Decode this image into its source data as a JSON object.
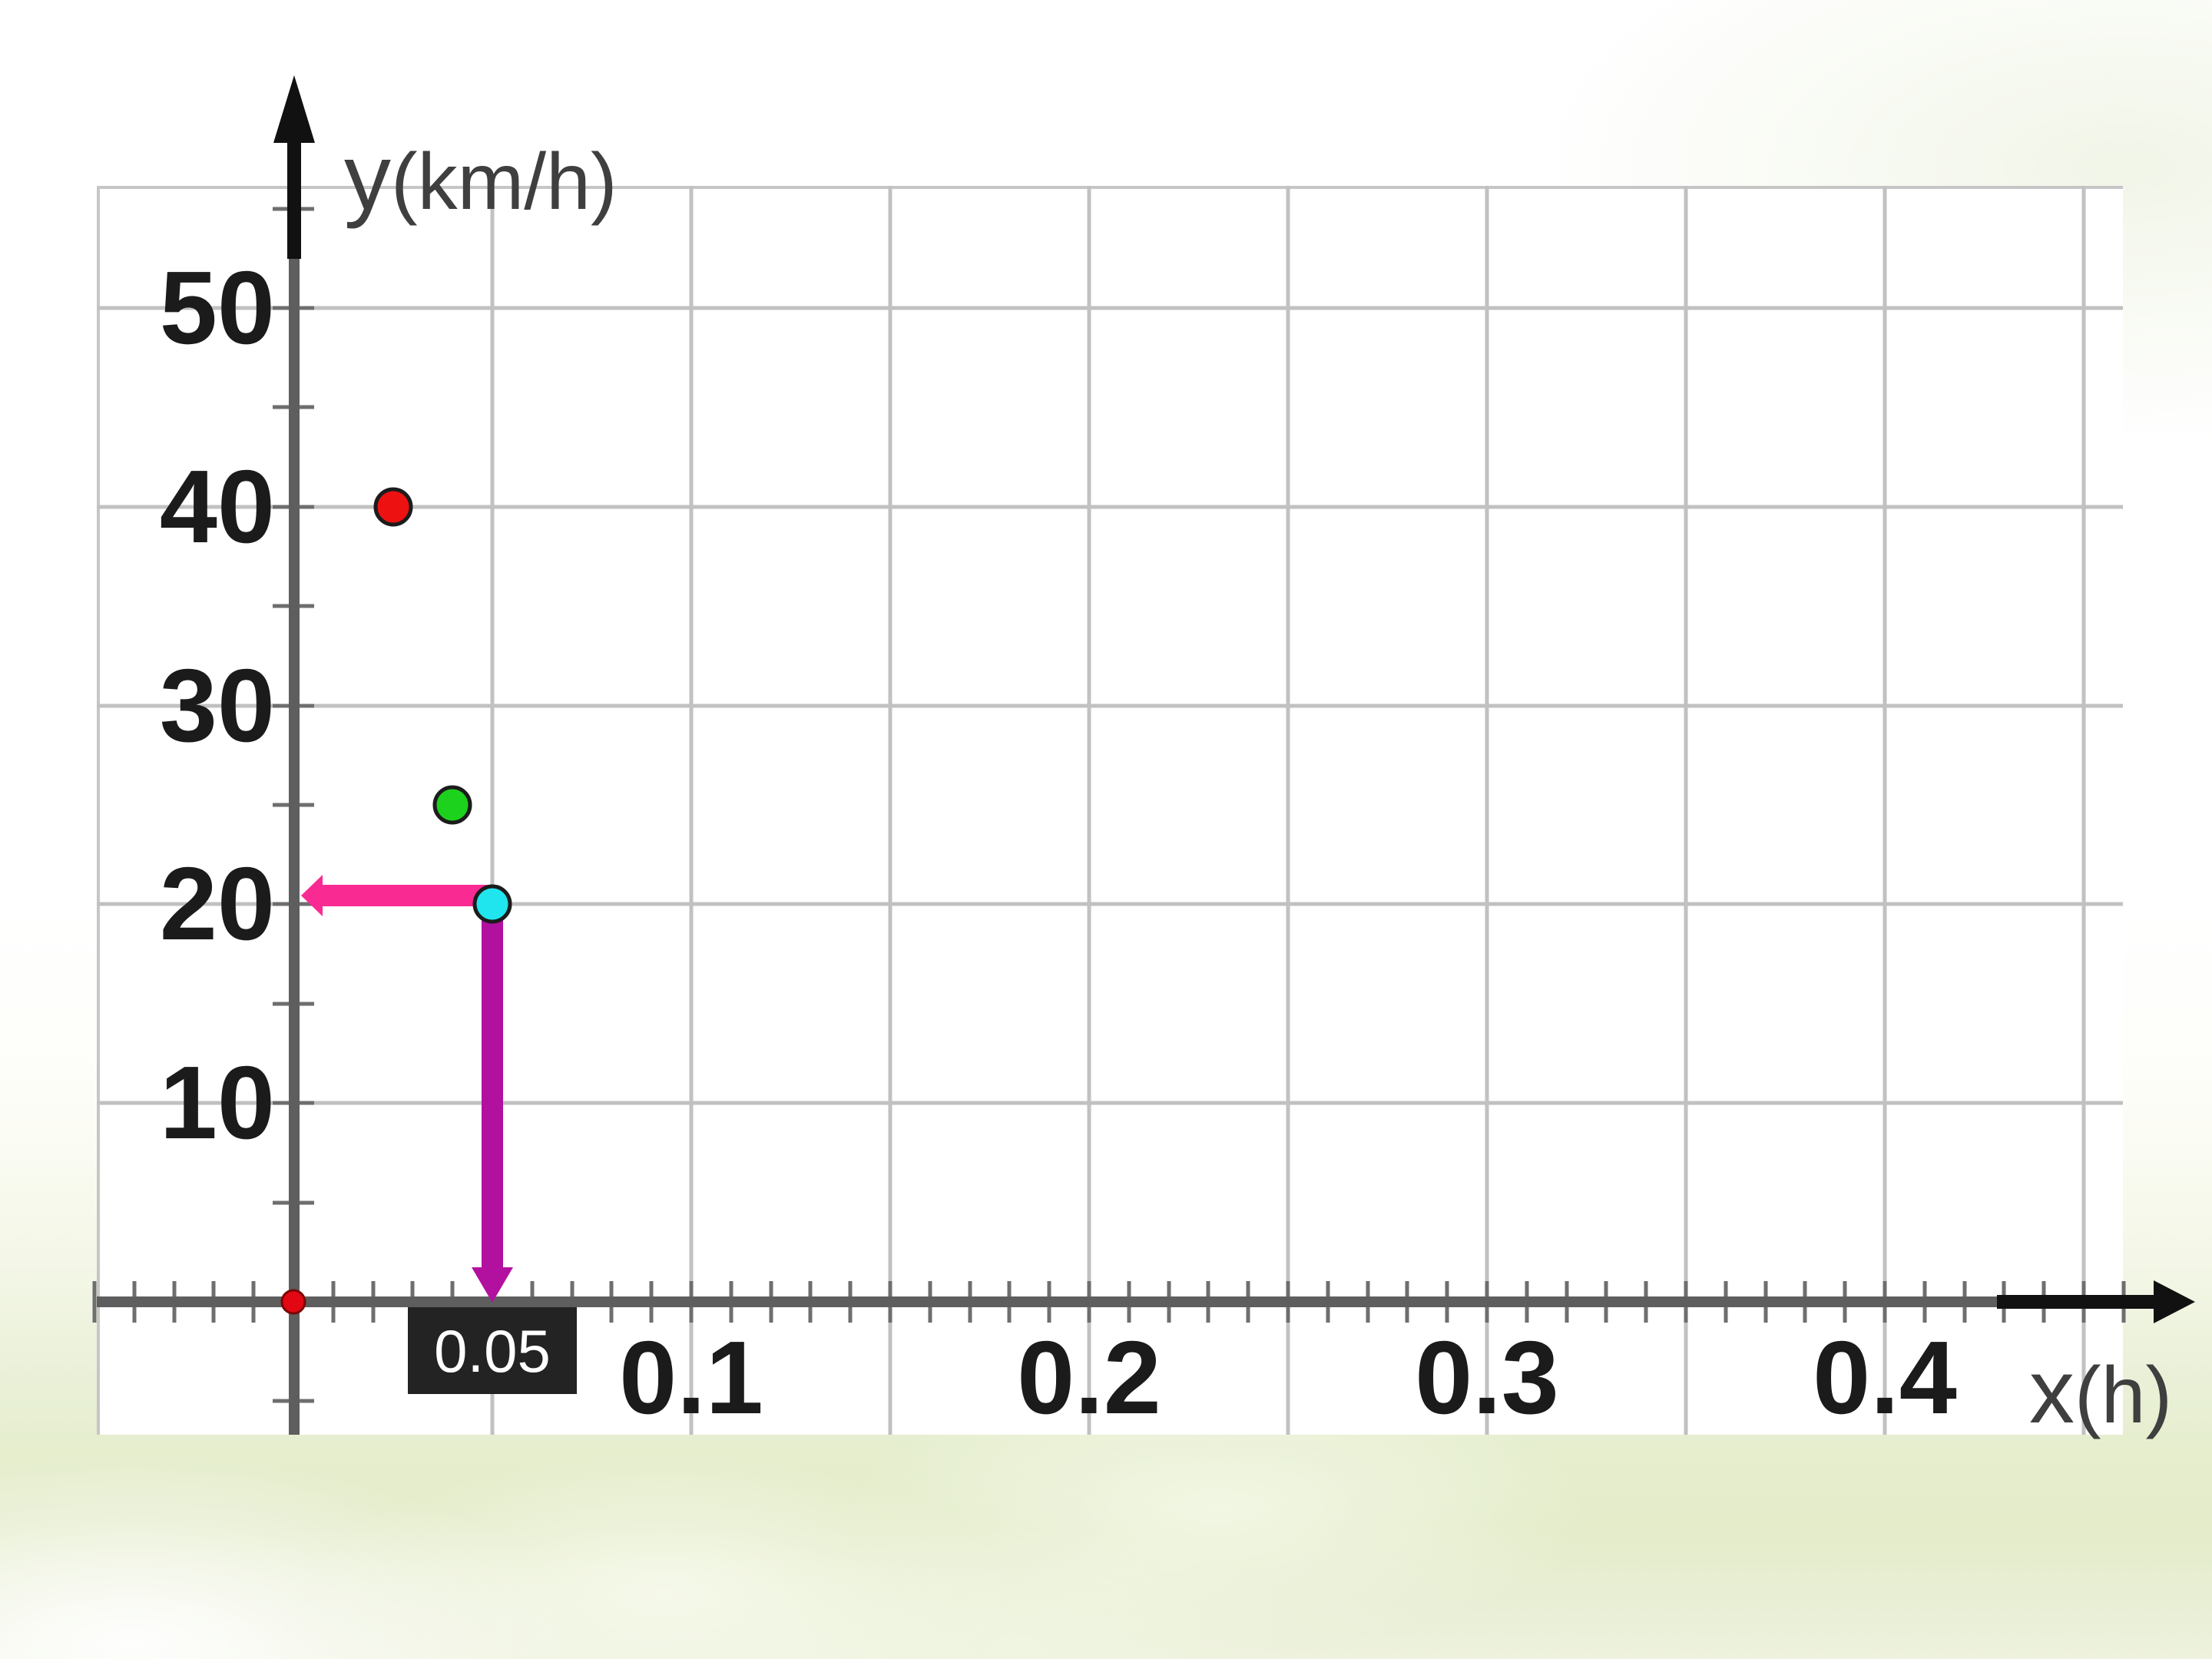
{
  "slide": {
    "background_top_color": "#ffffff",
    "background_bottom_color": "#e6eecf"
  },
  "chart_data": {
    "type": "scatter",
    "title": "",
    "xlabel": "x(h)",
    "xlabel_parts": {
      "symbol": "x",
      "unit": "(h)"
    },
    "ylabel": "y(km/h)",
    "ylabel_parts": {
      "symbol": "y",
      "unit": "(km/h)"
    },
    "xlim": [
      -0.05,
      0.46
    ],
    "ylim": [
      -5,
      56
    ],
    "grid": true,
    "x_gridline_step": 0.05,
    "y_gridline_step": 10,
    "x_minor_tick_step": 0.01,
    "y_minor_tick_step": 5,
    "x_tick_labels": [
      {
        "value": 0.1,
        "label": "0.1"
      },
      {
        "value": 0.2,
        "label": "0.2"
      },
      {
        "value": 0.3,
        "label": "0.3"
      },
      {
        "value": 0.4,
        "label": "0.4"
      }
    ],
    "y_tick_labels": [
      {
        "value": 50,
        "label": "50"
      },
      {
        "value": 40,
        "label": "40"
      },
      {
        "value": 30,
        "label": "30"
      },
      {
        "value": 20,
        "label": "20"
      },
      {
        "value": 10,
        "label": "10"
      }
    ],
    "points": [
      {
        "name": "red",
        "x": 0.025,
        "y": 40,
        "color": "#ee1111"
      },
      {
        "name": "green",
        "x": 0.04,
        "y": 25,
        "color": "#1dd21d"
      },
      {
        "name": "cyan",
        "x": 0.05,
        "y": 20,
        "color": "#20e5ee"
      }
    ],
    "origin_marker": {
      "x": 0,
      "y": 0,
      "color": "#e30613"
    },
    "annotations": {
      "h_arrow": {
        "from_x": 0.05,
        "to_x": 0.0,
        "at_y": 20,
        "color": "#fa2a93"
      },
      "v_arrow": {
        "at_x": 0.05,
        "from_y": 20,
        "to_y": 0,
        "color": "#b2119f"
      },
      "x_value_label": {
        "text": "0.05",
        "at_x": 0.05,
        "bg_color": "#232323",
        "text_color": "#ffffff"
      }
    },
    "colors": {
      "axis": "#5e5e5e",
      "axis_arrow": "#111111",
      "grid": "#c1c1c1",
      "tick": "#6e6e6e",
      "tick_label": "#1b1b1b",
      "axis_title": "#3f3f3f",
      "point_outline": "#1c1c1c"
    },
    "legend": null
  }
}
